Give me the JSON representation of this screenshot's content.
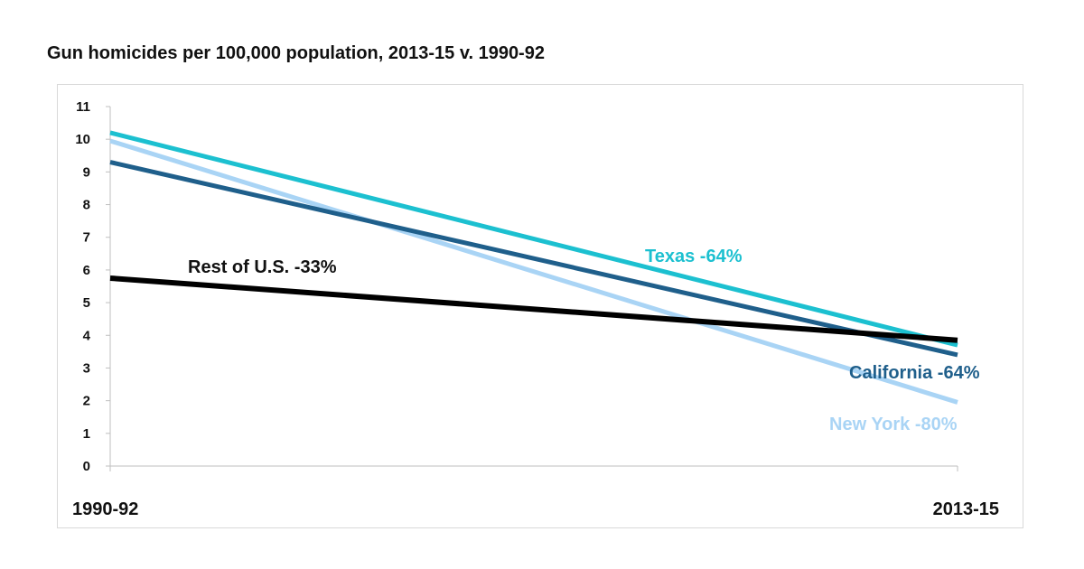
{
  "chart_data": {
    "type": "line",
    "title": "Gun homicides per 100,000 population, 2013-15 v. 1990-92",
    "xlabel": "",
    "ylabel": "",
    "categories": [
      "1990-92",
      "2013-15"
    ],
    "ylim": [
      0,
      11
    ],
    "yticks": [
      "0",
      "1",
      "2",
      "3",
      "4",
      "5",
      "6",
      "7",
      "8",
      "9",
      "10",
      "11"
    ],
    "grid": false,
    "legend": "none",
    "series": [
      {
        "name": "Rest of U.S.",
        "label": "Rest of U.S.  -33%",
        "values": [
          5.75,
          3.85
        ],
        "color": "#000000"
      },
      {
        "name": "California",
        "label": "California -64%",
        "values": [
          9.3,
          3.4
        ],
        "color": "#1f5f8b"
      },
      {
        "name": "Texas",
        "label": "Texas  -64%",
        "values": [
          10.2,
          3.7
        ],
        "color": "#1cc0d0"
      },
      {
        "name": "New York",
        "label": "New York  -80%",
        "values": [
          9.95,
          1.95
        ],
        "color": "#a9d4f5"
      }
    ]
  }
}
